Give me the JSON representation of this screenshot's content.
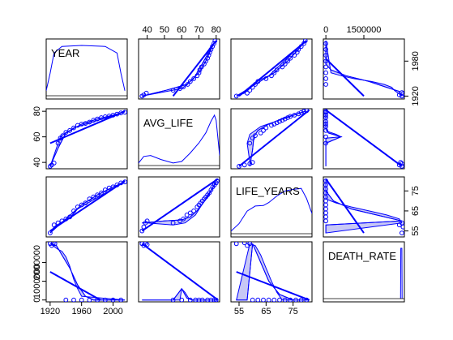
{
  "chart_data": {
    "type": "scatter",
    "variables": [
      "YEAR",
      "AVG_LIFE",
      "LIFE_YEARS",
      "DEATH_RATE"
    ],
    "axes": {
      "YEAR": {
        "range": [
          1915,
          2018
        ],
        "ticks": [
          1920,
          1960,
          2000
        ],
        "tick_labels": [
          "1920",
          "1960",
          "2000"
        ],
        "right_ticks": [
          1920,
          1980
        ],
        "right_tick_labels": [
          "1920",
          "1980"
        ]
      },
      "AVG_LIFE": {
        "range": [
          35,
          82
        ],
        "ticks": [
          40,
          50,
          60,
          70,
          80
        ],
        "tick_labels": [
          "40",
          "50",
          "60",
          "70",
          "80"
        ],
        "left_ticks": [
          40,
          60,
          80
        ],
        "left_tick_labels": [
          "40",
          "60",
          "80"
        ]
      },
      "LIFE_YEARS": {
        "range": [
          52,
          82
        ],
        "ticks": [
          55,
          65,
          75
        ],
        "tick_labels": [
          "55",
          "65",
          "75"
        ],
        "right_tick_labels": [
          "55",
          "65",
          "75"
        ]
      },
      "DEATH_RATE": {
        "range": [
          -100000,
          3100000
        ],
        "ticks": [
          0,
          1500000
        ],
        "tick_labels": [
          "0",
          "1500000"
        ],
        "left_ticks": [
          0,
          1000000,
          2000000
        ],
        "left_tick_labels": [
          "0",
          "1000000",
          "2000000"
        ]
      }
    },
    "panels": {
      "YEAR_vs_AVG_LIFE": {
        "points": [
          [
            1920,
            37
          ],
          [
            1922,
            38
          ],
          [
            1925,
            39.5
          ],
          [
            1930,
            55
          ],
          [
            1933,
            59
          ],
          [
            1936,
            61
          ],
          [
            1940,
            63.5
          ],
          [
            1945,
            65
          ],
          [
            1950,
            67
          ],
          [
            1955,
            69
          ],
          [
            1960,
            70
          ],
          [
            1965,
            70.5
          ],
          [
            1970,
            71.5
          ],
          [
            1975,
            73
          ],
          [
            1980,
            74
          ],
          [
            1985,
            75
          ],
          [
            1990,
            75.7
          ],
          [
            1995,
            76.3
          ],
          [
            2000,
            77
          ],
          [
            2005,
            77.8
          ],
          [
            2010,
            78.7
          ],
          [
            2015,
            79.3
          ]
        ],
        "regression": [
          [
            1920,
            55
          ],
          [
            2015,
            80
          ]
        ],
        "smoother": [
          [
            1920,
            37
          ],
          [
            1930,
            51
          ],
          [
            1940,
            63
          ],
          [
            1960,
            70
          ],
          [
            1980,
            74
          ],
          [
            2000,
            77
          ],
          [
            2015,
            79.5
          ]
        ],
        "band": [
          [
            1933,
            60
          ],
          [
            1939,
            63
          ],
          [
            1945,
            65
          ],
          [
            1950,
            67
          ]
        ]
      },
      "YEAR_vs_LIFE_YEARS": {
        "points": [
          [
            1920,
            54
          ],
          [
            1925,
            58
          ],
          [
            1930,
            59
          ],
          [
            1935,
            60
          ],
          [
            1940,
            61
          ],
          [
            1945,
            62
          ],
          [
            1950,
            65
          ],
          [
            1955,
            67
          ],
          [
            1960,
            68
          ],
          [
            1965,
            69
          ],
          [
            1970,
            71
          ],
          [
            1975,
            72
          ],
          [
            1980,
            73
          ],
          [
            1985,
            74
          ],
          [
            1990,
            75.5
          ],
          [
            1995,
            76.5
          ],
          [
            2000,
            77
          ],
          [
            2005,
            78
          ],
          [
            2010,
            79
          ],
          [
            2015,
            79.5
          ]
        ],
        "regression": [
          [
            1920,
            55
          ],
          [
            2015,
            80
          ]
        ],
        "smoother": [
          [
            1920,
            54
          ],
          [
            1940,
            61
          ],
          [
            1960,
            68
          ],
          [
            1980,
            73
          ],
          [
            2000,
            77
          ],
          [
            2015,
            79.5
          ]
        ],
        "band": [
          [
            1925,
            57
          ],
          [
            1935,
            59.5
          ],
          [
            1945,
            61.5
          ],
          [
            1955,
            66
          ]
        ]
      },
      "YEAR_vs_DEATH_RATE": {
        "points": [
          [
            1920,
            3000000
          ],
          [
            1922,
            2900000
          ],
          [
            1924,
            3050000
          ],
          [
            1926,
            3000000
          ],
          [
            1940,
            0
          ],
          [
            1950,
            0
          ],
          [
            1960,
            0
          ],
          [
            1970,
            0
          ],
          [
            1980,
            0
          ],
          [
            1990,
            0
          ],
          [
            2000,
            0
          ],
          [
            2010,
            0
          ]
        ],
        "regression": [
          [
            1920,
            1500000
          ],
          [
            1984,
            0
          ]
        ],
        "smoother": [
          [
            1920,
            3000000
          ],
          [
            1928,
            2900000
          ],
          [
            1935,
            2400000
          ],
          [
            1945,
            1700000
          ],
          [
            1955,
            800000
          ],
          [
            1965,
            200000
          ],
          [
            1975,
            0
          ],
          [
            2015,
            0
          ]
        ],
        "band": [
          [
            1930,
            2700000
          ],
          [
            1935,
            2600000
          ],
          [
            1940,
            2300000
          ],
          [
            1945,
            1800000
          ],
          [
            1950,
            1100000
          ],
          [
            1955,
            600000
          ],
          [
            1960,
            200000
          ]
        ]
      },
      "AVG_LIFE_vs_LIFE_YEARS": {
        "points": [
          [
            37,
            55
          ],
          [
            38,
            57
          ],
          [
            39,
            59
          ],
          [
            40,
            60
          ],
          [
            55,
            59
          ],
          [
            59,
            60
          ],
          [
            61,
            61
          ],
          [
            63,
            63
          ],
          [
            65,
            64
          ],
          [
            67,
            65
          ],
          [
            69,
            67
          ],
          [
            70,
            68
          ],
          [
            71,
            69
          ],
          [
            72,
            70
          ],
          [
            73,
            71
          ],
          [
            74,
            72
          ],
          [
            75,
            73
          ],
          [
            76,
            74
          ],
          [
            77,
            75.5
          ],
          [
            78,
            77
          ],
          [
            79,
            78
          ],
          [
            80,
            79
          ],
          [
            80.5,
            80
          ]
        ],
        "regression": [
          [
            37,
            55
          ],
          [
            81,
            81
          ]
        ],
        "smoother": [
          [
            37,
            59
          ],
          [
            50,
            60
          ],
          [
            60,
            60.5
          ],
          [
            65,
            62
          ],
          [
            70,
            66
          ],
          [
            75,
            72
          ],
          [
            80,
            79.5
          ]
        ],
        "band": [
          [
            40,
            59
          ],
          [
            55,
            58
          ],
          [
            62,
            59
          ],
          [
            68,
            63
          ]
        ]
      },
      "AVG_LIFE_vs_DEATH_RATE": {
        "points": [
          [
            37,
            3000000
          ],
          [
            38,
            2900000
          ],
          [
            39,
            3000000
          ],
          [
            40,
            2950000
          ],
          [
            55,
            0
          ],
          [
            60,
            0
          ],
          [
            65,
            0
          ],
          [
            68,
            0
          ],
          [
            70,
            0
          ],
          [
            72,
            0
          ],
          [
            75,
            0
          ],
          [
            77,
            0
          ],
          [
            79,
            0
          ],
          [
            80,
            0
          ]
        ],
        "regression": [
          [
            37,
            3000000
          ],
          [
            81,
            0
          ]
        ],
        "smoother": [
          [
            37,
            0
          ],
          [
            55,
            0
          ],
          [
            60,
            600000
          ],
          [
            63,
            100000
          ],
          [
            66,
            0
          ],
          [
            81,
            0
          ]
        ],
        "band": [
          [
            59,
            0
          ],
          [
            60,
            600000
          ],
          [
            62,
            400000
          ],
          [
            64,
            100000
          ],
          [
            66,
            0
          ]
        ]
      },
      "LIFE_YEARS_vs_DEATH_RATE": {
        "points": [
          [
            54,
            3000000
          ],
          [
            57,
            3050000
          ],
          [
            58,
            2900000
          ],
          [
            59,
            3000000
          ],
          [
            60,
            0
          ],
          [
            62,
            0
          ],
          [
            64,
            0
          ],
          [
            66,
            0
          ],
          [
            68,
            0
          ],
          [
            70,
            0
          ],
          [
            72,
            0
          ],
          [
            74,
            0
          ],
          [
            76,
            0
          ],
          [
            78,
            0
          ],
          [
            80,
            0
          ]
        ],
        "regression": [
          [
            54,
            1500000
          ],
          [
            81,
            0
          ]
        ],
        "smoother": [
          [
            54,
            0
          ],
          [
            58,
            0
          ],
          [
            60,
            3000000
          ],
          [
            63,
            2000000
          ],
          [
            66,
            1000000
          ],
          [
            70,
            300000
          ],
          [
            75,
            0
          ],
          [
            81,
            0
          ]
        ],
        "band": [
          [
            59,
            3000000
          ],
          [
            61,
            2900000
          ],
          [
            63,
            2400000
          ],
          [
            65,
            1700000
          ],
          [
            67,
            1000000
          ],
          [
            69,
            400000
          ],
          [
            71,
            0
          ]
        ]
      }
    },
    "densities": {
      "YEAR": [
        [
          1915,
          0.1
        ],
        [
          1920,
          0.45
        ],
        [
          1925,
          0.85
        ],
        [
          1935,
          0.98
        ],
        [
          1960,
          1.0
        ],
        [
          1990,
          0.98
        ],
        [
          2005,
          0.85
        ],
        [
          2010,
          0.45
        ],
        [
          2015,
          0.1
        ]
      ],
      "AVG_LIFE": [
        [
          35,
          0.05
        ],
        [
          38,
          0.18
        ],
        [
          42,
          0.2
        ],
        [
          48,
          0.12
        ],
        [
          55,
          0.05
        ],
        [
          60,
          0.08
        ],
        [
          65,
          0.25
        ],
        [
          70,
          0.45
        ],
        [
          74,
          0.65
        ],
        [
          77,
          0.88
        ],
        [
          79,
          1.0
        ],
        [
          80,
          0.9
        ],
        [
          81,
          0.55
        ],
        [
          82,
          0.2
        ]
      ],
      "LIFE_YEARS": [
        [
          52,
          0.05
        ],
        [
          55,
          0.2
        ],
        [
          58,
          0.45
        ],
        [
          61,
          0.55
        ],
        [
          64,
          0.56
        ],
        [
          66,
          0.62
        ],
        [
          69,
          0.75
        ],
        [
          72,
          0.85
        ],
        [
          75,
          0.88
        ],
        [
          78,
          0.9
        ],
        [
          80,
          0.7
        ],
        [
          82,
          0.4
        ]
      ],
      "DEATH_RATE": [
        [
          2950000,
          0
        ],
        [
          2960000,
          1.0
        ],
        [
          3000000,
          1.0
        ],
        [
          3010000,
          0
        ]
      ]
    },
    "colors": {
      "points": "#0000ff",
      "lines": "#0000ff",
      "band_fill": "#c8c8f5",
      "frame": "#000000"
    }
  }
}
